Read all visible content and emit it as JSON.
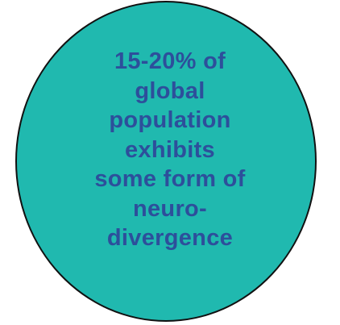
{
  "circle": {
    "lines": [
      "15-20% of",
      "global",
      "population",
      "exhibits",
      "some form of",
      "neuro-",
      "divergence"
    ],
    "fill_color": "#20b9af",
    "text_color": "#2d4f9b"
  }
}
